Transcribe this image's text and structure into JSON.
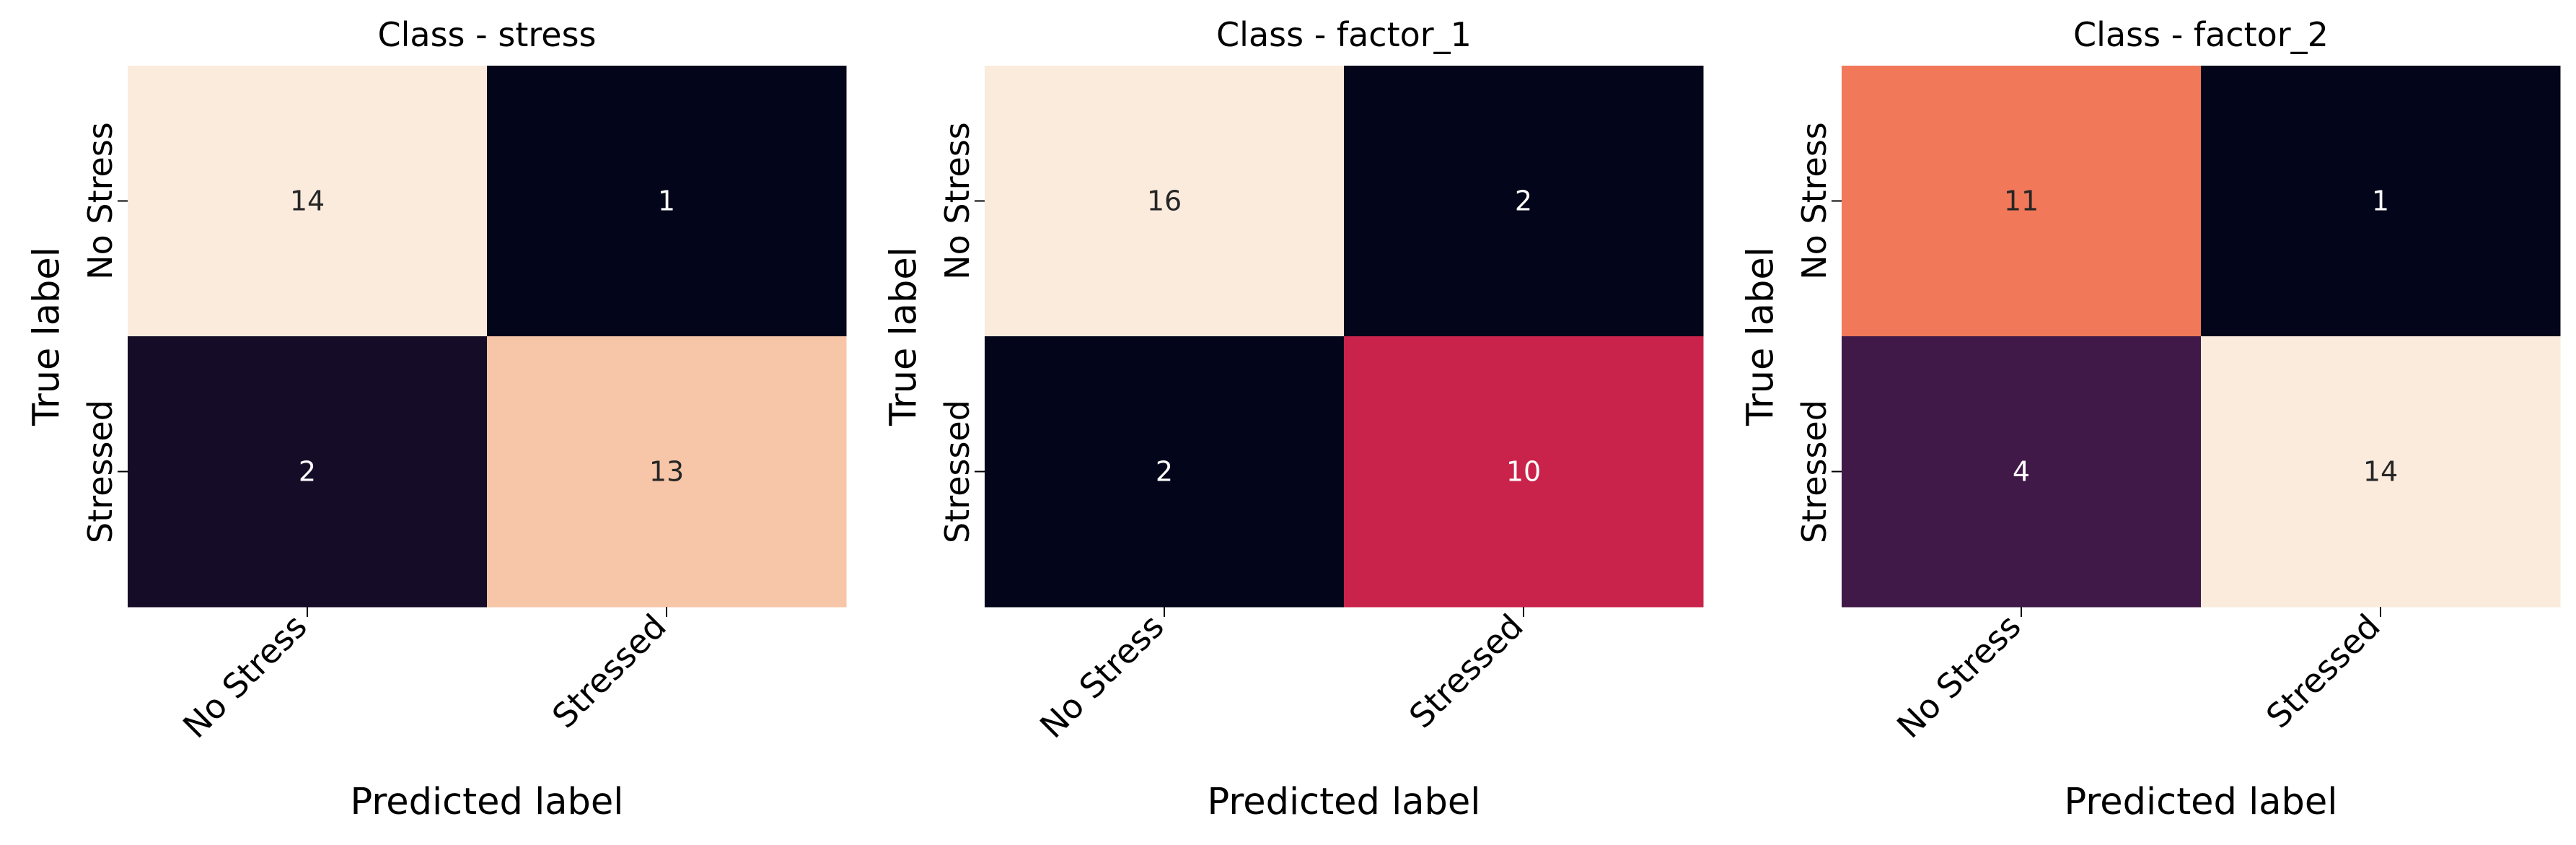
{
  "chart_data": [
    {
      "type": "heatmap",
      "title": "Class - stress",
      "xlabel": "Predicted label",
      "ylabel": "True label",
      "x_categories": [
        "No Stress",
        "Stressed"
      ],
      "y_categories": [
        "No Stress",
        "Stressed"
      ],
      "values": [
        [
          14,
          1
        ],
        [
          2,
          13
        ]
      ],
      "colorbar": false,
      "colormap": "rocket"
    },
    {
      "type": "heatmap",
      "title": "Class - factor_1",
      "xlabel": "Predicted label",
      "ylabel": "True label",
      "x_categories": [
        "No Stress",
        "Stressed"
      ],
      "y_categories": [
        "No Stress",
        "Stressed"
      ],
      "values": [
        [
          16,
          2
        ],
        [
          2,
          10
        ]
      ],
      "colorbar": false,
      "colormap": "rocket"
    },
    {
      "type": "heatmap",
      "title": "Class - factor_2",
      "xlabel": "Predicted label",
      "ylabel": "True label",
      "x_categories": [
        "No Stress",
        "Stressed"
      ],
      "y_categories": [
        "No Stress",
        "Stressed"
      ],
      "values": [
        [
          11,
          1
        ],
        [
          4,
          14
        ]
      ],
      "colorbar": false,
      "colormap": "rocket"
    }
  ]
}
